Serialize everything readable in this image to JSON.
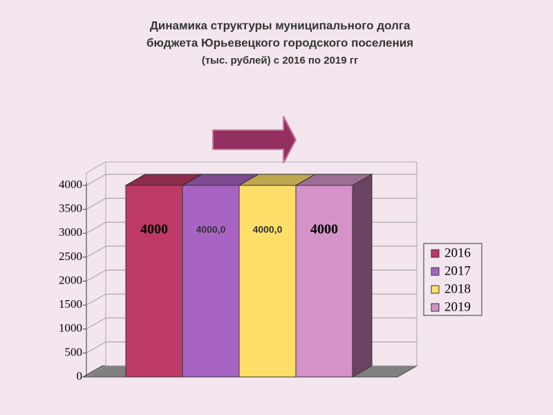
{
  "chart_data": {
    "type": "bar3d",
    "title": [
      "Динамика структуры муниципального долга",
      "бюджета Юрьевецкого городского поселения",
      "(тыс. рублей) с 2016 по 2019 гг"
    ],
    "categories": [
      null
    ],
    "series": [
      {
        "name": "2016",
        "color": "#be3a66",
        "values": [
          4000
        ],
        "value_labels": [
          "4000"
        ]
      },
      {
        "name": "2017",
        "color": "#a864c2",
        "values": [
          4000
        ],
        "value_labels": [
          "4000,0"
        ]
      },
      {
        "name": "2018",
        "color": "#ffdf6a",
        "values": [
          4000
        ],
        "value_labels": [
          "4000,0"
        ]
      },
      {
        "name": "2019",
        "color": "#d492c8",
        "values": [
          4000
        ],
        "value_labels": [
          "4000"
        ]
      }
    ],
    "ylim": [
      0,
      4000
    ],
    "yticks": [
      0,
      500,
      1000,
      1500,
      2000,
      2500,
      3000,
      3500,
      4000
    ],
    "grid": true,
    "legend": "right"
  }
}
